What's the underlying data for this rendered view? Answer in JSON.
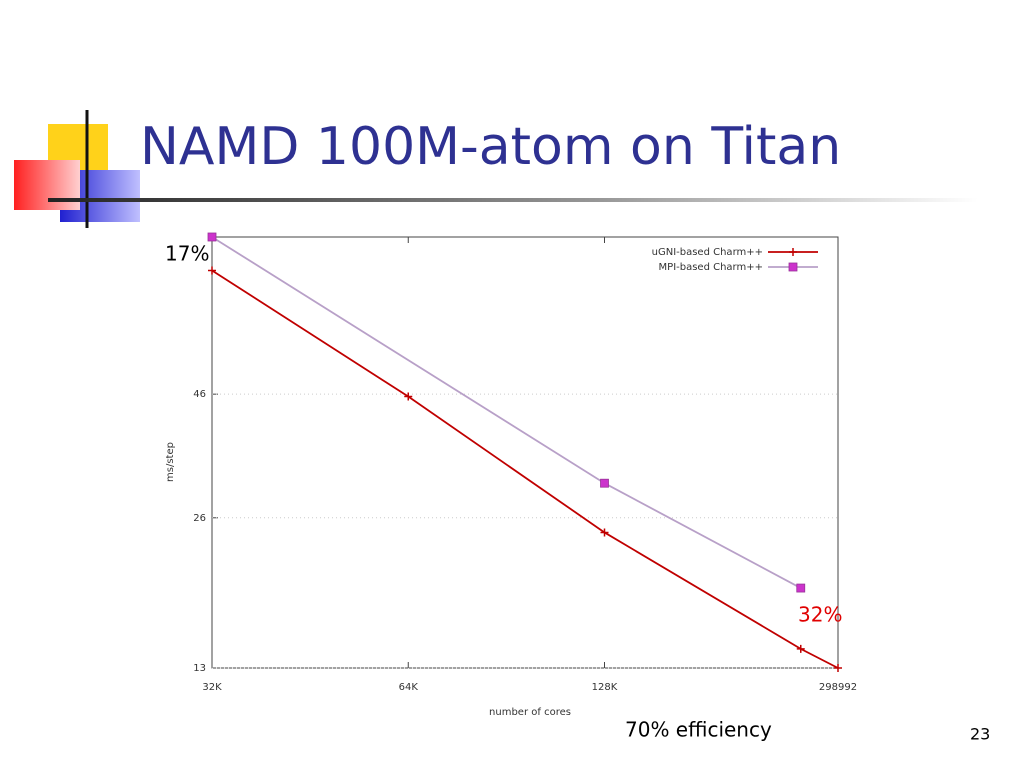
{
  "slide": {
    "title": "NAMD 100M-atom on Titan",
    "number": 23
  },
  "chart_data": {
    "type": "line",
    "xlabel": "number of cores",
    "ylabel": "ms/step",
    "xscale": "log",
    "yscale": "log",
    "xlim": [
      32768,
      298992
    ],
    "ylim": [
      13,
      95
    ],
    "xticks": [
      {
        "value": 32768,
        "label": "32K"
      },
      {
        "value": 65536,
        "label": "64K"
      },
      {
        "value": 131072,
        "label": "128K"
      },
      298992
    ],
    "yticks": [
      13,
      26,
      46
    ],
    "grid": true,
    "legend": "upper right",
    "series": [
      {
        "name": "uGNI-based Charm++",
        "color": "#c00000",
        "marker": "plus",
        "x": [
          32768,
          65536,
          131072,
          262144,
          298992
        ],
        "values": [
          81.4,
          45.5,
          24.3,
          14.2,
          13
        ]
      },
      {
        "name": "MPI-based Charm++",
        "color": "#b8a0c8",
        "marker": "square",
        "marker_color": "#cc33cc",
        "x": [
          32768,
          131072,
          262144
        ],
        "values": [
          95,
          30.5,
          18.8
        ]
      }
    ],
    "annotations": [
      {
        "text": "17%",
        "color": "#000000"
      },
      {
        "text": "32%",
        "color": "#e00000"
      },
      {
        "text": "70% efficiency",
        "color": "#000000"
      }
    ]
  }
}
